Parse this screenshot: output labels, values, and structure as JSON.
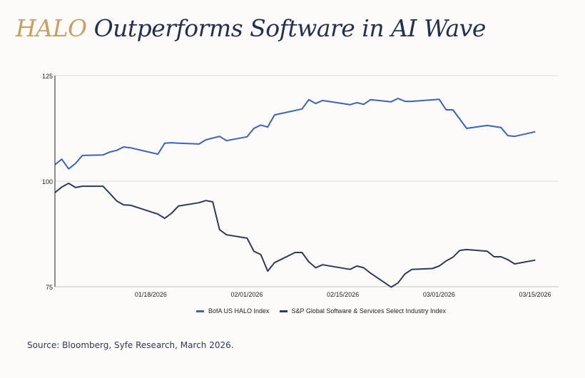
{
  "title": {
    "highlight": "HALO",
    "rest": " Outperforms Software in AI Wave"
  },
  "source": "Source: Bloomberg, Syfe Research, March 2026.",
  "colors": {
    "title_highlight": "#c9a061",
    "title": "#232f55",
    "halo": "#3b62c9",
    "sp": "#2c3a63",
    "grid": "#e5e3de"
  },
  "chart_data": {
    "type": "line",
    "title": "HALO Outperforms Software in AI Wave",
    "xlabel": "",
    "ylabel": "",
    "ylim": [
      75,
      125
    ],
    "yticks": [
      75,
      100,
      125
    ],
    "xlim_day_offset": [
      0,
      73.4
    ],
    "x_start_date": "01/02/2026",
    "xticks": [
      {
        "label": "01/18/2026",
        "day": 16
      },
      {
        "label": "02/01/2026",
        "day": 30
      },
      {
        "label": "02/15/2026",
        "day": 44
      },
      {
        "label": "03/01/2026",
        "day": 58
      },
      {
        "label": "03/15/2026",
        "day": 72
      }
    ],
    "grid": true,
    "legend": "bottom",
    "series": [
      {
        "name": "BofA US HALO Index",
        "color": "#3b62c9",
        "day": [
          0,
          1,
          2,
          3,
          4,
          7,
          8,
          9,
          10,
          11,
          15,
          16,
          17,
          18,
          21,
          22,
          24,
          25,
          28,
          29,
          30,
          31,
          32,
          36,
          37,
          38,
          39,
          43,
          44,
          45,
          46,
          49,
          50,
          51,
          52,
          56,
          57,
          58,
          59,
          60,
          63,
          65,
          66,
          67,
          70
        ],
        "values": [
          103.9,
          105.2,
          102.9,
          104.2,
          106.1,
          106.2,
          106.9,
          107.3,
          108.1,
          107.9,
          106.4,
          109.0,
          109.1,
          109.0,
          108.8,
          109.8,
          110.6,
          109.6,
          110.5,
          112.5,
          113.3,
          112.8,
          115.7,
          117.1,
          119.3,
          118.4,
          119.1,
          118.1,
          118.6,
          118.2,
          119.3,
          118.8,
          119.6,
          118.9,
          118.9,
          119.4,
          116.9,
          116.9,
          114.7,
          112.5,
          113.2,
          112.7,
          110.8,
          110.6,
          111.7
        ]
      },
      {
        "name": "S&P Global Software & Services Select Industry Index",
        "color": "#2c3a63",
        "day": [
          0,
          1,
          2,
          3,
          4,
          7,
          8,
          9,
          10,
          11,
          15,
          16,
          17,
          18,
          21,
          22,
          23,
          24,
          25,
          28,
          29,
          30,
          31,
          32,
          35,
          36,
          37,
          38,
          39,
          43,
          44,
          45,
          46,
          49,
          50,
          51,
          52,
          55,
          56,
          57,
          58,
          59,
          60,
          63,
          64,
          65,
          66,
          67,
          70
        ],
        "values": [
          97.3,
          98.6,
          99.5,
          98.5,
          98.8,
          98.8,
          97.1,
          95.3,
          94.4,
          94.3,
          92.2,
          91.2,
          92.4,
          94.1,
          94.9,
          95.4,
          95.1,
          88.5,
          87.3,
          86.5,
          83.4,
          82.6,
          78.7,
          80.7,
          83.1,
          83.1,
          80.9,
          79.5,
          80.2,
          79.1,
          79.9,
          79.5,
          78.2,
          74.9,
          75.9,
          78.0,
          79.1,
          79.3,
          79.9,
          81.1,
          82.0,
          83.6,
          83.8,
          83.4,
          82.1,
          82.1,
          81.4,
          80.4,
          81.3
        ]
      }
    ]
  }
}
